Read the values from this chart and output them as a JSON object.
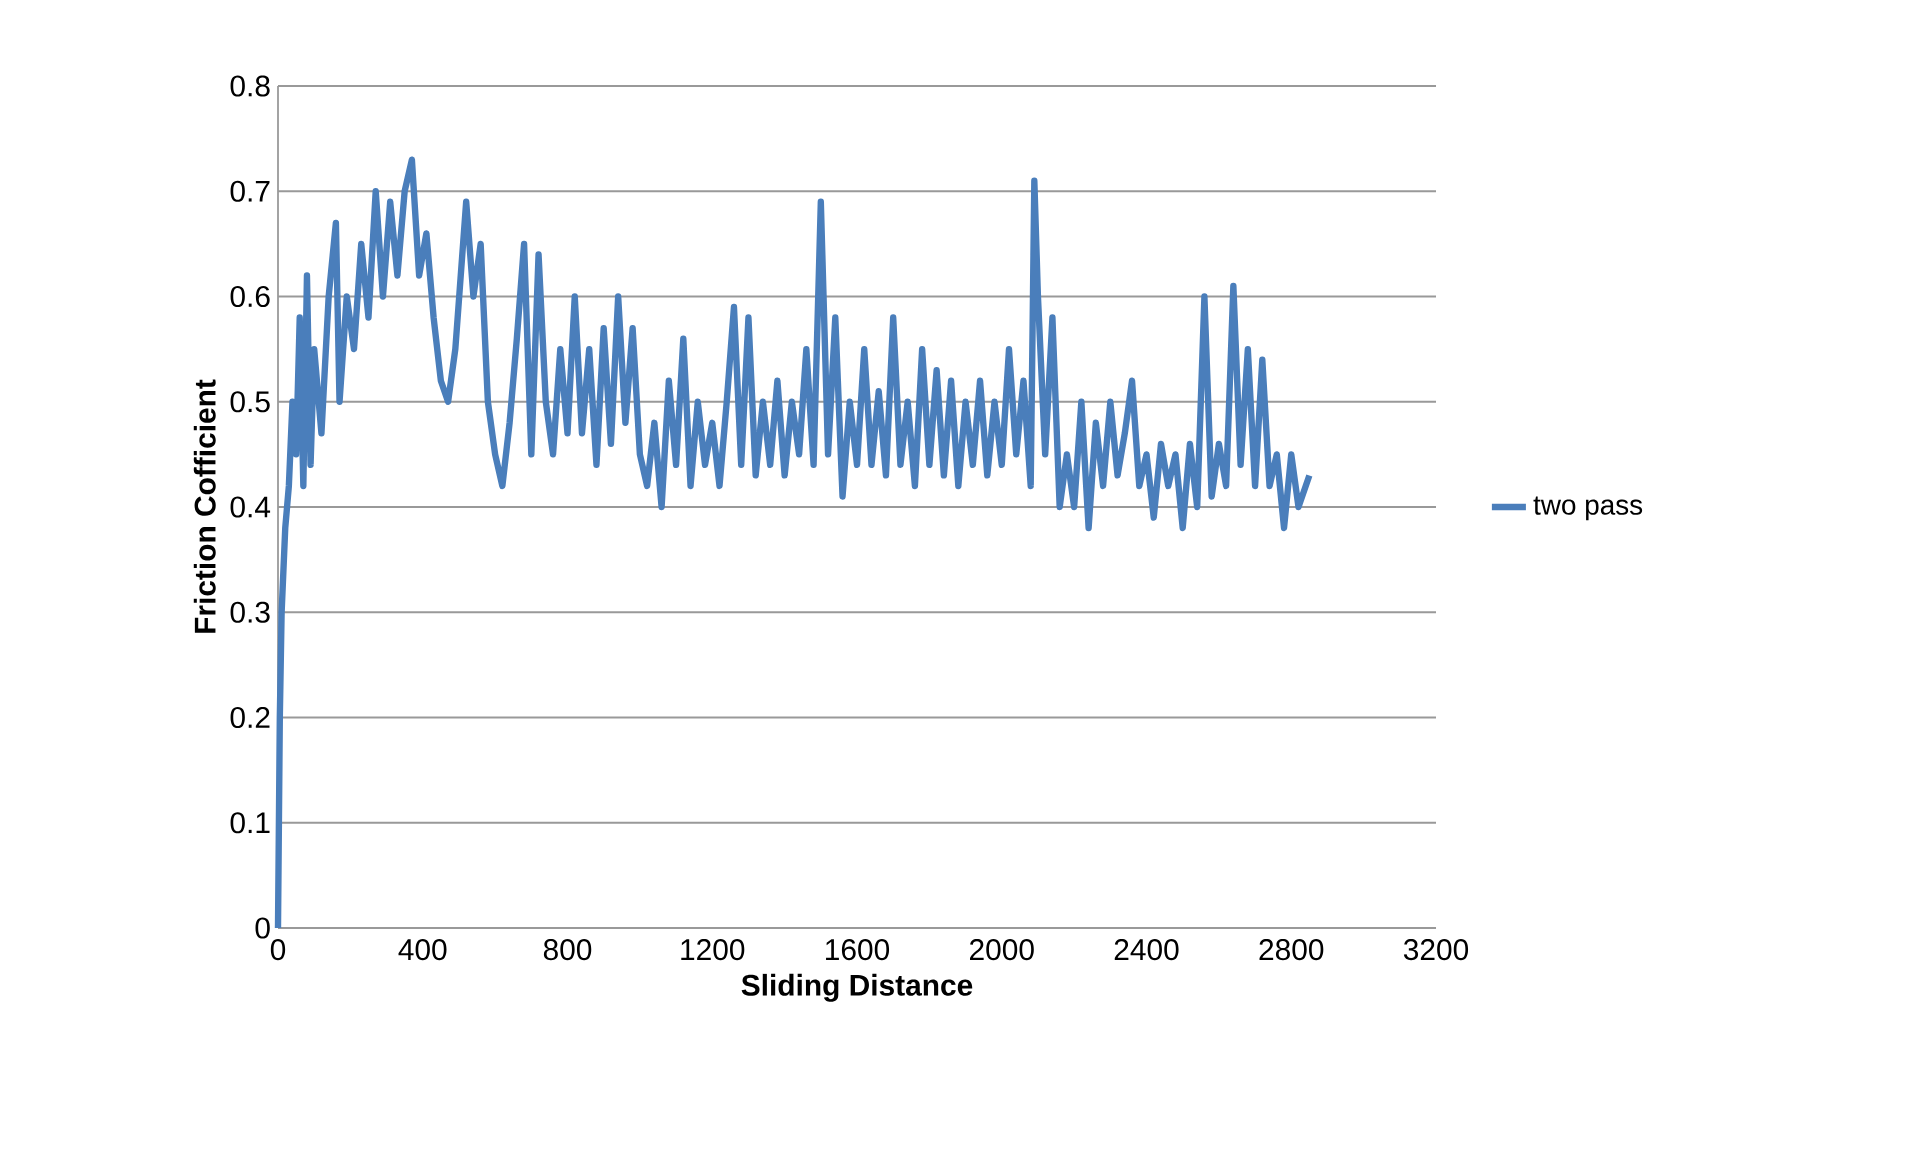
{
  "chart_data": {
    "type": "line",
    "xlabel": "Sliding Distance",
    "ylabel": "Friction Cofficient",
    "xlim": [
      0,
      3200
    ],
    "xticks": [
      0,
      400,
      800,
      1200,
      1600,
      2000,
      2400,
      2800,
      3200
    ],
    "ylim": [
      0,
      0.8
    ],
    "yticks": [
      0,
      0.1,
      0.2,
      0.3,
      0.4,
      0.5,
      0.6,
      0.7,
      0.8
    ],
    "grid": "y",
    "legend": "right",
    "marker": "none",
    "line_style": "solid",
    "series": [
      {
        "name": "two pass",
        "color": "#4a7ebb",
        "x": [
          0,
          5,
          10,
          20,
          30,
          40,
          50,
          60,
          70,
          80,
          90,
          100,
          120,
          140,
          160,
          170,
          190,
          210,
          230,
          250,
          270,
          290,
          310,
          330,
          350,
          370,
          390,
          410,
          430,
          450,
          470,
          490,
          520,
          540,
          560,
          580,
          600,
          620,
          640,
          660,
          680,
          700,
          720,
          740,
          760,
          780,
          800,
          820,
          840,
          860,
          880,
          900,
          920,
          940,
          960,
          980,
          1000,
          1020,
          1040,
          1060,
          1080,
          1100,
          1120,
          1140,
          1160,
          1180,
          1200,
          1220,
          1240,
          1260,
          1280,
          1300,
          1320,
          1340,
          1360,
          1380,
          1400,
          1420,
          1440,
          1460,
          1480,
          1500,
          1520,
          1540,
          1560,
          1580,
          1600,
          1620,
          1640,
          1660,
          1680,
          1700,
          1720,
          1740,
          1760,
          1780,
          1800,
          1820,
          1840,
          1860,
          1880,
          1900,
          1920,
          1940,
          1960,
          1980,
          2000,
          2020,
          2040,
          2060,
          2080,
          2090,
          2100,
          2120,
          2140,
          2160,
          2180,
          2200,
          2220,
          2240,
          2260,
          2280,
          2300,
          2320,
          2340,
          2360,
          2380,
          2400,
          2420,
          2440,
          2460,
          2480,
          2500,
          2520,
          2540,
          2560,
          2580,
          2600,
          2620,
          2640,
          2660,
          2680,
          2700,
          2720,
          2740,
          2760,
          2780,
          2800,
          2820,
          2850
        ],
        "values": [
          0,
          0.2,
          0.3,
          0.38,
          0.42,
          0.5,
          0.45,
          0.58,
          0.42,
          0.62,
          0.44,
          0.55,
          0.47,
          0.6,
          0.67,
          0.5,
          0.6,
          0.55,
          0.65,
          0.58,
          0.7,
          0.6,
          0.69,
          0.62,
          0.7,
          0.73,
          0.62,
          0.66,
          0.58,
          0.52,
          0.5,
          0.55,
          0.69,
          0.6,
          0.65,
          0.5,
          0.45,
          0.42,
          0.48,
          0.56,
          0.65,
          0.45,
          0.64,
          0.5,
          0.45,
          0.55,
          0.47,
          0.6,
          0.47,
          0.55,
          0.44,
          0.57,
          0.46,
          0.6,
          0.48,
          0.57,
          0.45,
          0.42,
          0.48,
          0.4,
          0.52,
          0.44,
          0.56,
          0.42,
          0.5,
          0.44,
          0.48,
          0.42,
          0.5,
          0.59,
          0.44,
          0.58,
          0.43,
          0.5,
          0.44,
          0.52,
          0.43,
          0.5,
          0.45,
          0.55,
          0.44,
          0.69,
          0.45,
          0.58,
          0.41,
          0.5,
          0.44,
          0.55,
          0.44,
          0.51,
          0.43,
          0.58,
          0.44,
          0.5,
          0.42,
          0.55,
          0.44,
          0.53,
          0.43,
          0.52,
          0.42,
          0.5,
          0.44,
          0.52,
          0.43,
          0.5,
          0.44,
          0.55,
          0.45,
          0.52,
          0.42,
          0.71,
          0.6,
          0.45,
          0.58,
          0.4,
          0.45,
          0.4,
          0.5,
          0.38,
          0.48,
          0.42,
          0.5,
          0.43,
          0.47,
          0.52,
          0.42,
          0.45,
          0.39,
          0.46,
          0.42,
          0.45,
          0.38,
          0.46,
          0.4,
          0.6,
          0.41,
          0.46,
          0.42,
          0.61,
          0.44,
          0.55,
          0.42,
          0.54,
          0.42,
          0.45,
          0.38,
          0.45,
          0.4,
          0.43
        ]
      }
    ]
  }
}
